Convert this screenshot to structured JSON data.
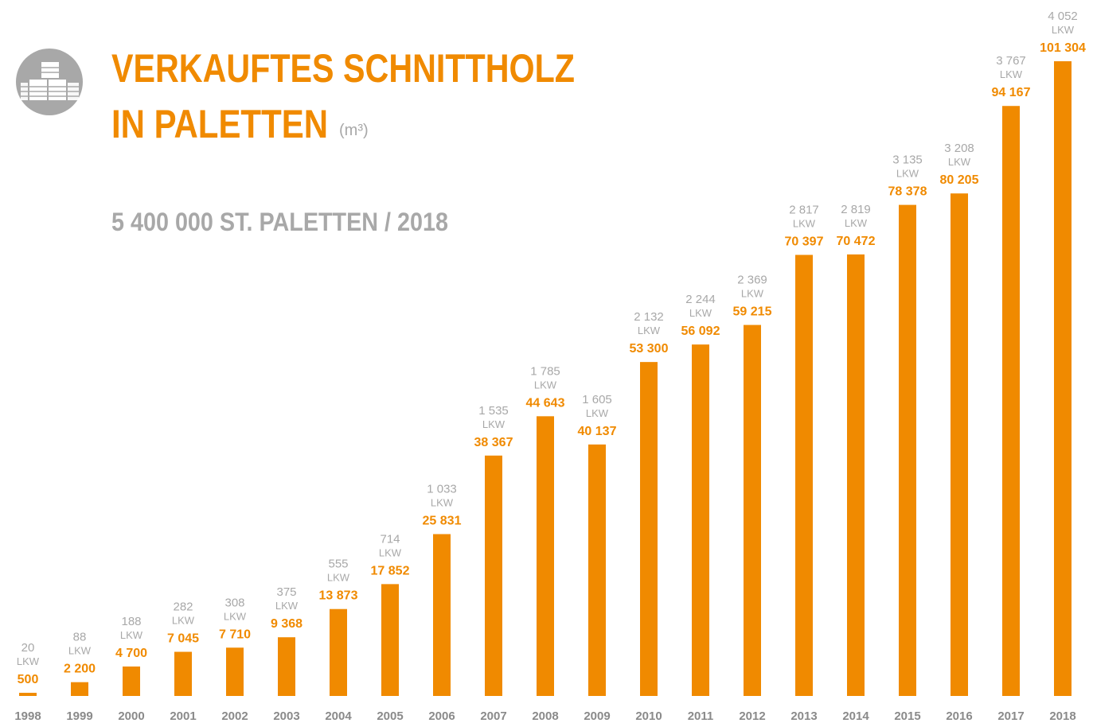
{
  "chart_data": {
    "type": "bar",
    "title_lines": [
      "VERKAUFTES SCHNITTHOLZ",
      "IN PALETTEN"
    ],
    "unit": "(m³)",
    "subtitle": "5 400 000 ST. PALETTEN / 2018",
    "categories": [
      "1998",
      "1999",
      "2000",
      "2001",
      "2002",
      "2003",
      "2004",
      "2005",
      "2006",
      "2007",
      "2008",
      "2009",
      "2010",
      "2011",
      "2012",
      "2013",
      "2014",
      "2015",
      "2016",
      "2017",
      "2018"
    ],
    "values": [
      500,
      2200,
      4700,
      7045,
      7710,
      9368,
      13873,
      17852,
      25831,
      38367,
      44643,
      40137,
      53300,
      56092,
      59215,
      70397,
      70472,
      78378,
      80205,
      94167,
      101304
    ],
    "value_labels": [
      "500",
      "2 200",
      "4 700",
      "7 045",
      "7 710",
      "9 368",
      "13 873",
      "17 852",
      "25 831",
      "38 367",
      "44 643",
      "40 137",
      "53 300",
      "56 092",
      "59 215",
      "70 397",
      "70 472",
      "78 378",
      "80 205",
      "94 167",
      "101 304"
    ],
    "color": "#f08a00",
    "lkw": {
      "unit": "LKW",
      "color": "#a8a8a8",
      "values": [
        20,
        88,
        188,
        282,
        308,
        375,
        555,
        714,
        1033,
        1535,
        1785,
        1605,
        2132,
        2244,
        2369,
        2817,
        2819,
        3135,
        3208,
        3767,
        4052
      ],
      "value_labels": [
        "20",
        "88",
        "188",
        "282",
        "308",
        "375",
        "555",
        "714",
        "1 033",
        "1 535",
        "1 785",
        "1 605",
        "2 132",
        "2 244",
        "2 369",
        "2 817",
        "2 819",
        "3 135",
        "3 208",
        "3 767",
        "4 052"
      ]
    }
  }
}
